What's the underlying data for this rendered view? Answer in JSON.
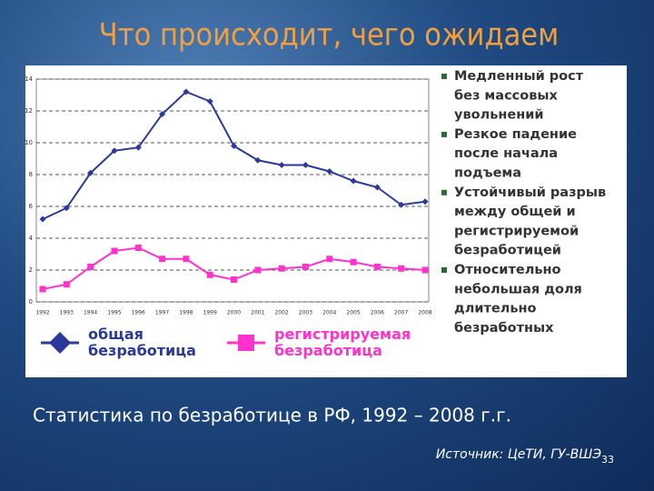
{
  "slide": {
    "title": "Что происходит, чего ожидаем",
    "bullets": [
      [
        "Медленный рост",
        "без массовых",
        "увольнений"
      ],
      [
        "Резкое падение",
        "после начала",
        "подъема"
      ],
      [
        "Устойчивый разрыв",
        "между общей и",
        "регистрируемой",
        "безработицей"
      ],
      [
        "Относительно",
        "небольшая доля",
        "длительно",
        "безработных"
      ]
    ],
    "caption": "Статистика по безработице в РФ, 1992 – 2008 г.г.",
    "source": "Источник: ЦеТИ, ГУ-ВШЭ",
    "page_number": "33"
  },
  "chart_data": {
    "type": "line",
    "categories": [
      "1992",
      "1993",
      "1994",
      "1995",
      "1996",
      "1997",
      "1998",
      "1999",
      "2000",
      "2001",
      "2002",
      "2003",
      "2004",
      "2005",
      "2006",
      "2007",
      "2008"
    ],
    "series": [
      {
        "name": "общая безработица",
        "color": "#2b3a9a",
        "marker": "diamond",
        "values": [
          5.2,
          5.9,
          8.1,
          9.5,
          9.7,
          11.8,
          13.2,
          12.6,
          9.8,
          8.9,
          8.6,
          8.6,
          8.2,
          7.6,
          7.2,
          6.1,
          6.3
        ]
      },
      {
        "name": "регистрируемая безработица",
        "color": "#ff33cc",
        "marker": "square",
        "values": [
          0.8,
          1.1,
          2.2,
          3.2,
          3.4,
          2.7,
          2.7,
          1.7,
          1.4,
          2.0,
          2.1,
          2.2,
          2.7,
          2.5,
          2.2,
          2.1,
          2.0
        ]
      }
    ],
    "ylim": [
      0,
      14
    ],
    "yticks": [
      0,
      2,
      4,
      6,
      8,
      10,
      12,
      14
    ],
    "grid": true
  }
}
